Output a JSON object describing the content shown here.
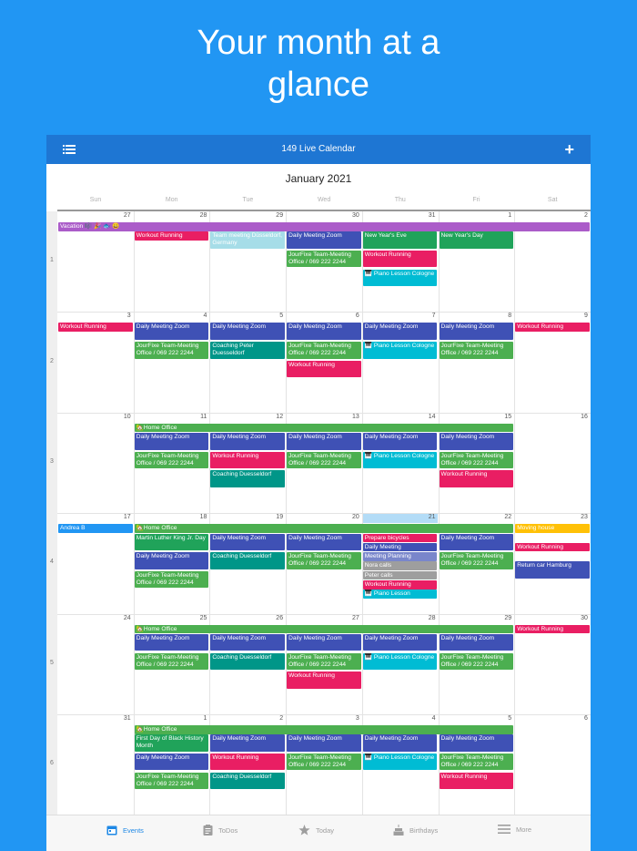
{
  "headline": {
    "line1": "Your month at a",
    "line2": "glance"
  },
  "appbar": {
    "title": "149 Live Calendar",
    "add_label": "+"
  },
  "calendar": {
    "month_title": "January 2021",
    "weekdays": [
      "Sun",
      "Mon",
      "Tue",
      "Wed",
      "Thu",
      "Fri",
      "Sat"
    ],
    "week_numbers": [
      "1",
      "2",
      "3",
      "4",
      "5",
      "6"
    ],
    "day_numbers": [
      [
        "27",
        "28",
        "29",
        "30",
        "31",
        "1",
        "2"
      ],
      [
        "3",
        "4",
        "5",
        "6",
        "7",
        "8",
        "9"
      ],
      [
        "10",
        "11",
        "12",
        "13",
        "14",
        "15",
        "16"
      ],
      [
        "17",
        "18",
        "19",
        "20",
        "21",
        "22",
        "23"
      ],
      [
        "24",
        "25",
        "26",
        "27",
        "28",
        "29",
        "30"
      ],
      [
        "31",
        "1",
        "2",
        "3",
        "4",
        "5",
        "6"
      ]
    ],
    "today": {
      "week": 4,
      "weekday": "Thu",
      "day": "21"
    },
    "events": [
      {
        "text": "Vacation 🎼 🎉 🐟 😀",
        "color": "#ab5cc9",
        "week": 1,
        "slot": 0,
        "from": 0,
        "to": 6
      },
      {
        "text": "Workout Running",
        "color": "#e91e63",
        "week": 1,
        "slot": 1,
        "from": 1,
        "to": 1
      },
      {
        "text": "Team meeting Düsseldorf, Germany",
        "color": "#a6dde8",
        "week": 1,
        "slot": 1,
        "from": 2,
        "to": 2,
        "lines": 2
      },
      {
        "text": "Daily Meeting Zoom",
        "color": "#3f51b5",
        "week": 1,
        "slot": 1,
        "from": 3,
        "to": 3,
        "lines": 2
      },
      {
        "text": "JourFixe Team-Meeting Office / 069 222 2244",
        "color": "#4caf50",
        "week": 1,
        "slot": 3,
        "from": 3,
        "to": 3,
        "lines": 2
      },
      {
        "text": "New Year's Eve",
        "color": "#20a35a",
        "week": 1,
        "slot": 1,
        "from": 4,
        "to": 4,
        "lines": 2
      },
      {
        "text": "Workout Running",
        "color": "#e91e63",
        "week": 1,
        "slot": 3,
        "from": 4,
        "to": 4,
        "lines": 2
      },
      {
        "text": "🎹 Piano Lesson Cologne",
        "color": "#00bcd4",
        "week": 1,
        "slot": 5,
        "from": 4,
        "to": 4,
        "lines": 2
      },
      {
        "text": "New Year's Day",
        "color": "#20a35a",
        "week": 1,
        "slot": 1,
        "from": 5,
        "to": 5,
        "lines": 2
      },
      {
        "text": "Workout Running",
        "color": "#e91e63",
        "week": 2,
        "slot": 0,
        "from": 0,
        "to": 0
      },
      {
        "text": "Daily Meeting Zoom",
        "color": "#3f51b5",
        "week": 2,
        "slot": 0,
        "from": 1,
        "to": 1,
        "lines": 2
      },
      {
        "text": "JourFixe Team-Meeting Office / 069 222 2244",
        "color": "#4caf50",
        "week": 2,
        "slot": 2,
        "from": 1,
        "to": 1,
        "lines": 2
      },
      {
        "text": "Daily Meeting Zoom",
        "color": "#3f51b5",
        "week": 2,
        "slot": 0,
        "from": 2,
        "to": 2,
        "lines": 2
      },
      {
        "text": "Coaching Peter Duesseldorf",
        "color": "#009688",
        "week": 2,
        "slot": 2,
        "from": 2,
        "to": 2,
        "lines": 2
      },
      {
        "text": "Daily Meeting Zoom",
        "color": "#3f51b5",
        "week": 2,
        "slot": 0,
        "from": 3,
        "to": 3,
        "lines": 2
      },
      {
        "text": "JourFixe Team-Meeting Office / 069 222 2244",
        "color": "#4caf50",
        "week": 2,
        "slot": 2,
        "from": 3,
        "to": 3,
        "lines": 2
      },
      {
        "text": "Workout Running",
        "color": "#e91e63",
        "week": 2,
        "slot": 4,
        "from": 3,
        "to": 3,
        "lines": 2
      },
      {
        "text": "Daily Meeting Zoom",
        "color": "#3f51b5",
        "week": 2,
        "slot": 0,
        "from": 4,
        "to": 4,
        "lines": 2
      },
      {
        "text": "🎹 Piano Lesson Cologne",
        "color": "#00bcd4",
        "week": 2,
        "slot": 2,
        "from": 4,
        "to": 4,
        "lines": 2
      },
      {
        "text": "Daily Meeting Zoom",
        "color": "#3f51b5",
        "week": 2,
        "slot": 0,
        "from": 5,
        "to": 5,
        "lines": 2
      },
      {
        "text": "JourFixe Team-Meeting Office / 069 222 2244",
        "color": "#4caf50",
        "week": 2,
        "slot": 2,
        "from": 5,
        "to": 5,
        "lines": 2
      },
      {
        "text": "Workout Running",
        "color": "#e91e63",
        "week": 2,
        "slot": 0,
        "from": 6,
        "to": 6
      },
      {
        "text": "🏡Home Office",
        "color": "#4caf50",
        "week": 3,
        "slot": 0,
        "from": 1,
        "to": 5
      },
      {
        "text": "Daily Meeting Zoom",
        "color": "#3f51b5",
        "week": 3,
        "slot": 1,
        "from": 1,
        "to": 1,
        "lines": 2
      },
      {
        "text": "JourFixe Team-Meeting Office / 069 222 2244",
        "color": "#4caf50",
        "week": 3,
        "slot": 3,
        "from": 1,
        "to": 1,
        "lines": 2
      },
      {
        "text": "Daily Meeting Zoom",
        "color": "#3f51b5",
        "week": 3,
        "slot": 1,
        "from": 2,
        "to": 2,
        "lines": 2
      },
      {
        "text": "Workout Running",
        "color": "#e91e63",
        "week": 3,
        "slot": 3,
        "from": 2,
        "to": 2,
        "lines": 2
      },
      {
        "text": "Coaching Duesseldorf",
        "color": "#009688",
        "week": 3,
        "slot": 5,
        "from": 2,
        "to": 2,
        "lines": 2
      },
      {
        "text": "Daily Meeting Zoom",
        "color": "#3f51b5",
        "week": 3,
        "slot": 1,
        "from": 3,
        "to": 3,
        "lines": 2
      },
      {
        "text": "JourFixe Team-Meeting Office / 069 222 2244",
        "color": "#4caf50",
        "week": 3,
        "slot": 3,
        "from": 3,
        "to": 3,
        "lines": 2
      },
      {
        "text": "Daily Meeting Zoom",
        "color": "#3f51b5",
        "week": 3,
        "slot": 1,
        "from": 4,
        "to": 4,
        "lines": 2
      },
      {
        "text": "🎹 Piano Lesson Cologne",
        "color": "#00bcd4",
        "week": 3,
        "slot": 3,
        "from": 4,
        "to": 4,
        "lines": 2
      },
      {
        "text": "Daily Meeting Zoom",
        "color": "#3f51b5",
        "week": 3,
        "slot": 1,
        "from": 5,
        "to": 5,
        "lines": 2
      },
      {
        "text": "JourFixe Team-Meeting Office / 069 222 2244",
        "color": "#4caf50",
        "week": 3,
        "slot": 3,
        "from": 5,
        "to": 5,
        "lines": 2
      },
      {
        "text": "Workout Running",
        "color": "#e91e63",
        "week": 3,
        "slot": 5,
        "from": 5,
        "to": 5,
        "lines": 2
      },
      {
        "text": "Andrea B",
        "color": "#2196f3",
        "week": 4,
        "slot": 0,
        "from": 0,
        "to": 0
      },
      {
        "text": "🏡Home Office",
        "color": "#4caf50",
        "week": 4,
        "slot": 0,
        "from": 1,
        "to": 5
      },
      {
        "text": "Martin Luther King Jr. Day",
        "color": "#20a35a",
        "week": 4,
        "slot": 1,
        "from": 1,
        "to": 1,
        "lines": 2
      },
      {
        "text": "Daily Meeting Zoom",
        "color": "#3f51b5",
        "week": 4,
        "slot": 3,
        "from": 1,
        "to": 1,
        "lines": 2
      },
      {
        "text": "JourFixe Team-Meeting Office / 069 222 2244",
        "color": "#4caf50",
        "week": 4,
        "slot": 5,
        "from": 1,
        "to": 1,
        "lines": 2
      },
      {
        "text": "Daily Meeting Zoom",
        "color": "#3f51b5",
        "week": 4,
        "slot": 1,
        "from": 2,
        "to": 2,
        "lines": 2
      },
      {
        "text": "Coaching Duesseldorf",
        "color": "#009688",
        "week": 4,
        "slot": 3,
        "from": 2,
        "to": 2,
        "lines": 2
      },
      {
        "text": "Daily Meeting Zoom",
        "color": "#3f51b5",
        "week": 4,
        "slot": 1,
        "from": 3,
        "to": 3,
        "lines": 2
      },
      {
        "text": "JourFixe Team-Meeting Office / 069 222 2244",
        "color": "#4caf50",
        "week": 4,
        "slot": 3,
        "from": 3,
        "to": 3,
        "lines": 2
      },
      {
        "text": "Prepare bicycles",
        "color": "#e91e63",
        "week": 4,
        "slot": 1,
        "from": 4,
        "to": 4
      },
      {
        "text": "Daily Meeting",
        "color": "#3f51b5",
        "week": 4,
        "slot": 2,
        "from": 4,
        "to": 4
      },
      {
        "text": "Meeting Planning",
        "color": "#7986cb",
        "week": 4,
        "slot": 3,
        "from": 4,
        "to": 4
      },
      {
        "text": "Nora calls",
        "color": "#9e9e9e",
        "week": 4,
        "slot": 4,
        "from": 4,
        "to": 4
      },
      {
        "text": "Peter calls",
        "color": "#9e9e9e",
        "week": 4,
        "slot": 5,
        "from": 4,
        "to": 4
      },
      {
        "text": "Workout Running",
        "color": "#e91e63",
        "week": 4,
        "slot": 6,
        "from": 4,
        "to": 4
      },
      {
        "text": "🎹 Piano Lesson",
        "color": "#00bcd4",
        "week": 4,
        "slot": 7,
        "from": 4,
        "to": 4
      },
      {
        "text": "Daily Meeting Zoom",
        "color": "#3f51b5",
        "week": 4,
        "slot": 1,
        "from": 5,
        "to": 5,
        "lines": 2
      },
      {
        "text": "JourFixe Team-Meeting Office / 069 222 2244",
        "color": "#4caf50",
        "week": 4,
        "slot": 3,
        "from": 5,
        "to": 5,
        "lines": 2
      },
      {
        "text": "Moving house",
        "color": "#ffc107",
        "week": 4,
        "slot": 0,
        "from": 6,
        "to": 6
      },
      {
        "text": "Workout Running",
        "color": "#e91e63",
        "week": 4,
        "slot": 2,
        "from": 6,
        "to": 6
      },
      {
        "text": "Return car Hamburg",
        "color": "#3f51b5",
        "week": 4,
        "slot": 4,
        "from": 6,
        "to": 6,
        "lines": 2
      },
      {
        "text": "🏡Home Office",
        "color": "#4caf50",
        "week": 5,
        "slot": 0,
        "from": 1,
        "to": 5
      },
      {
        "text": "Workout Running",
        "color": "#e91e63",
        "week": 5,
        "slot": 0,
        "from": 6,
        "to": 6
      },
      {
        "text": "Daily Meeting Zoom",
        "color": "#3f51b5",
        "week": 5,
        "slot": 1,
        "from": 1,
        "to": 1,
        "lines": 2
      },
      {
        "text": "JourFixe Team-Meeting Office / 069 222 2244",
        "color": "#4caf50",
        "week": 5,
        "slot": 3,
        "from": 1,
        "to": 1,
        "lines": 2
      },
      {
        "text": "Daily Meeting Zoom",
        "color": "#3f51b5",
        "week": 5,
        "slot": 1,
        "from": 2,
        "to": 2,
        "lines": 2
      },
      {
        "text": "Coaching Duesseldorf",
        "color": "#009688",
        "week": 5,
        "slot": 3,
        "from": 2,
        "to": 2,
        "lines": 2
      },
      {
        "text": "Daily Meeting Zoom",
        "color": "#3f51b5",
        "week": 5,
        "slot": 1,
        "from": 3,
        "to": 3,
        "lines": 2
      },
      {
        "text": "JourFixe Team-Meeting Office / 069 222 2244",
        "color": "#4caf50",
        "week": 5,
        "slot": 3,
        "from": 3,
        "to": 3,
        "lines": 2
      },
      {
        "text": "Workout Running",
        "color": "#e91e63",
        "week": 5,
        "slot": 5,
        "from": 3,
        "to": 3,
        "lines": 2
      },
      {
        "text": "Daily Meeting Zoom",
        "color": "#3f51b5",
        "week": 5,
        "slot": 1,
        "from": 4,
        "to": 4,
        "lines": 2
      },
      {
        "text": "🎹 Piano Lesson Cologne",
        "color": "#00bcd4",
        "week": 5,
        "slot": 3,
        "from": 4,
        "to": 4,
        "lines": 2
      },
      {
        "text": "Daily Meeting Zoom",
        "color": "#3f51b5",
        "week": 5,
        "slot": 1,
        "from": 5,
        "to": 5,
        "lines": 2
      },
      {
        "text": "JourFixe Team-Meeting Office / 069 222 2244",
        "color": "#4caf50",
        "week": 5,
        "slot": 3,
        "from": 5,
        "to": 5,
        "lines": 2
      },
      {
        "text": "🏡Home Office",
        "color": "#4caf50",
        "week": 6,
        "slot": 0,
        "from": 1,
        "to": 5
      },
      {
        "text": "First Day of Black History Month",
        "color": "#20a35a",
        "week": 6,
        "slot": 1,
        "from": 1,
        "to": 1,
        "lines": 2
      },
      {
        "text": "Daily Meeting Zoom",
        "color": "#3f51b5",
        "week": 6,
        "slot": 3,
        "from": 1,
        "to": 1,
        "lines": 2
      },
      {
        "text": "JourFixe Team-Meeting Office / 069 222 2244",
        "color": "#4caf50",
        "week": 6,
        "slot": 5,
        "from": 1,
        "to": 1,
        "lines": 2
      },
      {
        "text": "Daily Meeting Zoom",
        "color": "#3f51b5",
        "week": 6,
        "slot": 1,
        "from": 2,
        "to": 2,
        "lines": 2
      },
      {
        "text": "Workout Running",
        "color": "#e91e63",
        "week": 6,
        "slot": 3,
        "from": 2,
        "to": 2,
        "lines": 2
      },
      {
        "text": "Coaching Duesseldorf",
        "color": "#009688",
        "week": 6,
        "slot": 5,
        "from": 2,
        "to": 2,
        "lines": 2
      },
      {
        "text": "Daily Meeting Zoom",
        "color": "#3f51b5",
        "week": 6,
        "slot": 1,
        "from": 3,
        "to": 3,
        "lines": 2
      },
      {
        "text": "JourFixe Team-Meeting Office / 069 222 2244",
        "color": "#4caf50",
        "week": 6,
        "slot": 3,
        "from": 3,
        "to": 3,
        "lines": 2
      },
      {
        "text": "Daily Meeting Zoom",
        "color": "#3f51b5",
        "week": 6,
        "slot": 1,
        "from": 4,
        "to": 4,
        "lines": 2
      },
      {
        "text": "🎹 Piano Lesson Cologne",
        "color": "#00bcd4",
        "week": 6,
        "slot": 3,
        "from": 4,
        "to": 4,
        "lines": 2
      },
      {
        "text": "Daily Meeting Zoom",
        "color": "#3f51b5",
        "week": 6,
        "slot": 1,
        "from": 5,
        "to": 5,
        "lines": 2
      },
      {
        "text": "JourFixe Team-Meeting Office / 069 222 2244",
        "color": "#4caf50",
        "week": 6,
        "slot": 3,
        "from": 5,
        "to": 5,
        "lines": 2
      },
      {
        "text": "Workout Running",
        "color": "#e91e63",
        "week": 6,
        "slot": 5,
        "from": 5,
        "to": 5,
        "lines": 2
      }
    ]
  },
  "tabbar": {
    "tabs": [
      {
        "label": "Events",
        "icon": "calendar-icon",
        "active": true
      },
      {
        "label": "ToDos",
        "icon": "clipboard-icon",
        "active": false
      },
      {
        "label": "Today",
        "icon": "star-icon",
        "active": false
      },
      {
        "label": "Birthdays",
        "icon": "cake-icon",
        "active": false
      },
      {
        "label": "More",
        "icon": "menu-icon",
        "active": false
      }
    ]
  },
  "colors": {
    "background": "#2196f3",
    "appbar": "#1e76d3",
    "today_highlight": "#b3dcf7",
    "active_tab": "#1e88e5"
  }
}
